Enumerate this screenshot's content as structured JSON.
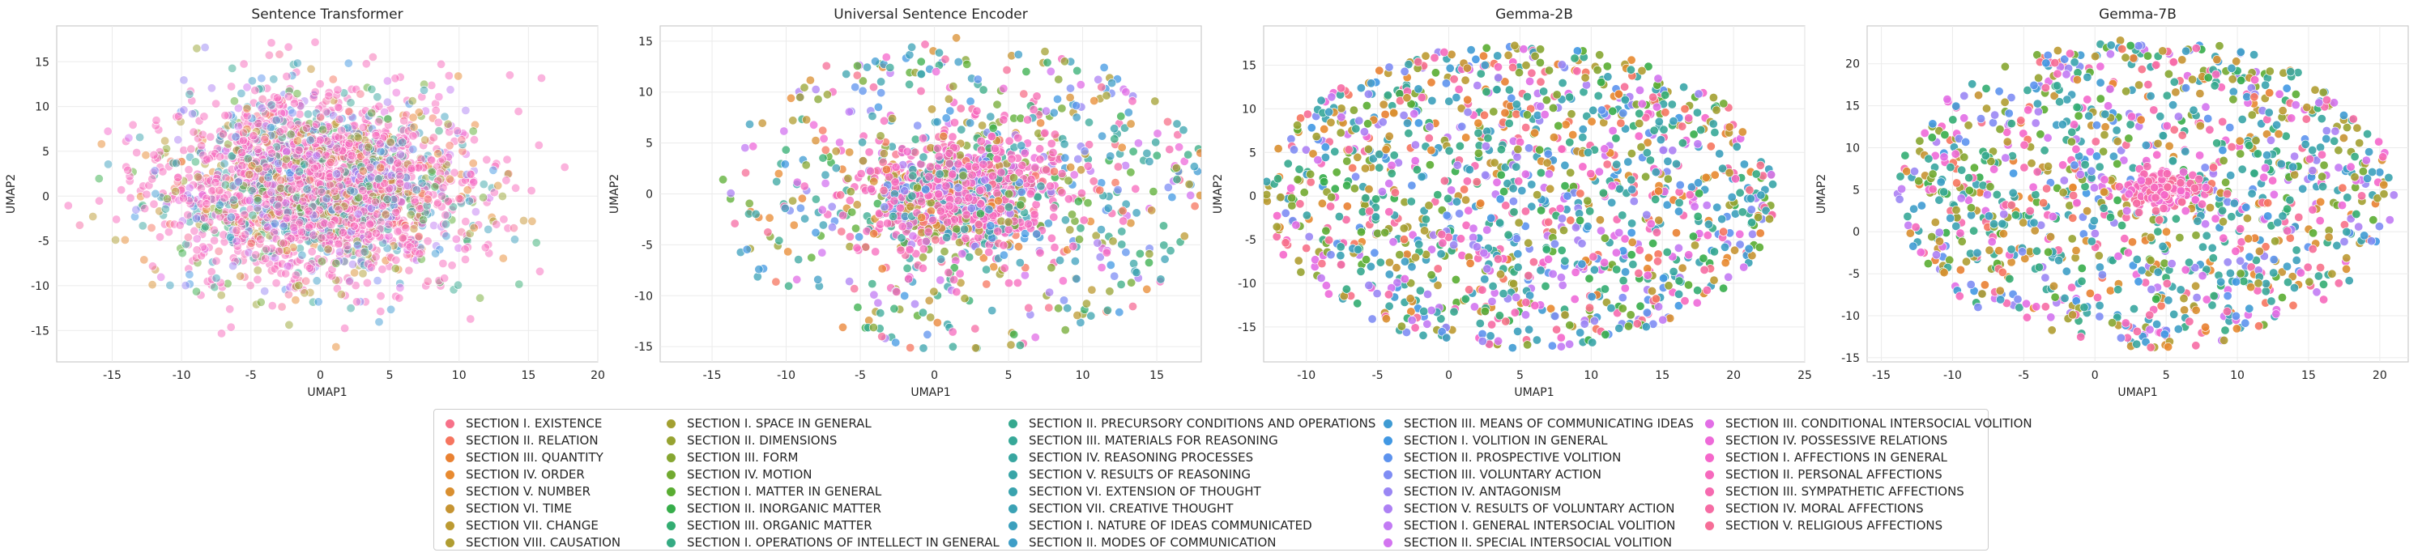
{
  "chart_data": [
    {
      "type": "scatter",
      "title": "Sentence Transformer",
      "xlabel": "UMAP1",
      "ylabel": "UMAP2",
      "xlim": [
        -19,
        20
      ],
      "ylim": [
        -18.5,
        19
      ],
      "xticks": [
        -15,
        -10,
        -5,
        0,
        5,
        10,
        15,
        20
      ],
      "yticks": [
        -15,
        -10,
        -5,
        0,
        5,
        10,
        15
      ],
      "grid": true,
      "distribution": {
        "shape": "gaussian",
        "center": [
          0,
          1
        ],
        "spread": [
          5.5,
          5.2
        ],
        "points": 2500,
        "marker_alpha": 0.5,
        "dominant_color": "#f768bc"
      }
    },
    {
      "type": "scatter",
      "title": "Universal Sentence Encoder",
      "xlabel": "UMAP1",
      "ylabel": "UMAP2",
      "xlim": [
        -18.5,
        18
      ],
      "ylim": [
        -16.5,
        16.5
      ],
      "xticks": [
        -15,
        -10,
        -5,
        0,
        5,
        10,
        15
      ],
      "yticks": [
        -15,
        -10,
        -5,
        0,
        5,
        10,
        15
      ],
      "grid": true,
      "distribution": {
        "shape": "core-and-halo",
        "center": [
          2,
          0
        ],
        "spread": [
          3.5,
          3
        ],
        "core_points": 900,
        "halo_points": 550,
        "halo_radius": [
          16.5,
          15.5
        ],
        "marker_alpha": 0.75,
        "dominant_color": "#f768bc"
      }
    },
    {
      "type": "scatter",
      "title": "Gemma-2B",
      "xlabel": "UMAP1",
      "ylabel": "UMAP2",
      "xlim": [
        -13,
        25
      ],
      "ylim": [
        -19,
        19.5
      ],
      "xticks": [
        -10,
        -5,
        0,
        5,
        10,
        15,
        20,
        25
      ],
      "yticks": [
        -15,
        -10,
        -5,
        0,
        5,
        10,
        15
      ],
      "grid": true,
      "distribution": {
        "shape": "uniform-ellipse",
        "center": [
          5,
          0
        ],
        "radius": [
          18,
          17.5
        ],
        "points": 1300,
        "marker_alpha": 0.9
      }
    },
    {
      "type": "scatter",
      "title": "Gemma-7B",
      "xlabel": "UMAP1",
      "ylabel": "UMAP2",
      "xlim": [
        -16,
        22
      ],
      "ylim": [
        -15.5,
        24.5
      ],
      "xticks": [
        -15,
        -10,
        -5,
        0,
        5,
        10,
        15,
        20
      ],
      "yticks": [
        -15,
        -10,
        -5,
        0,
        5,
        10,
        15,
        20
      ],
      "grid": true,
      "distribution": {
        "shape": "uniform-ellipse-with-core",
        "center": [
          3.5,
          4.5
        ],
        "radius": [
          17.5,
          18.5
        ],
        "points": 1200,
        "core_points": 150,
        "core_center": [
          5,
          5
        ],
        "marker_alpha": 0.9
      }
    }
  ],
  "legend": {
    "location": "bottom-center",
    "entries": [
      {
        "label": "SECTION I. EXISTENCE",
        "color": "#f77189"
      },
      {
        "label": "SECTION II. RELATION",
        "color": "#f6755f"
      },
      {
        "label": "SECTION III. QUANTITY",
        "color": "#e98132"
      },
      {
        "label": "SECTION IV. ORDER",
        "color": "#e88a30"
      },
      {
        "label": "SECTION V. NUMBER",
        "color": "#d98f30"
      },
      {
        "label": "SECTION VI. TIME",
        "color": "#c69432"
      },
      {
        "label": "SECTION VII. CHANGE",
        "color": "#bc9a32"
      },
      {
        "label": "SECTION VIII. CAUSATION",
        "color": "#b09d32"
      },
      {
        "label": "SECTION I. SPACE IN GENERAL",
        "color": "#a3a031"
      },
      {
        "label": "SECTION II. DIMENSIONS",
        "color": "#97a331"
      },
      {
        "label": "SECTION III. FORM",
        "color": "#86a631"
      },
      {
        "label": "SECTION IV. MOTION",
        "color": "#72aa31"
      },
      {
        "label": "SECTION I. MATTER IN GENERAL",
        "color": "#5aad32"
      },
      {
        "label": "SECTION II. INORGANIC MATTER",
        "color": "#36ad4a"
      },
      {
        "label": "SECTION III. ORGANIC MATTER",
        "color": "#33ad72"
      },
      {
        "label": "SECTION I. OPERATIONS OF INTELLECT IN GENERAL",
        "color": "#35ab83"
      },
      {
        "label": "SECTION II. PRECURSORY CONDITIONS AND OPERATIONS",
        "color": "#36a98f"
      },
      {
        "label": "SECTION III. MATERIALS FOR REASONING",
        "color": "#37a898"
      },
      {
        "label": "SECTION IV. REASONING PROCESSES",
        "color": "#38a6a0"
      },
      {
        "label": "SECTION V. RESULTS OF REASONING",
        "color": "#39a5a7"
      },
      {
        "label": "SECTION VI. EXTENSION OF THOUGHT",
        "color": "#3aa3ae"
      },
      {
        "label": "SECTION VII. CREATIVE THOUGHT",
        "color": "#3ba2b5"
      },
      {
        "label": "SECTION I. NATURE OF IDEAS COMMUNICATED",
        "color": "#3ca0bd"
      },
      {
        "label": "SECTION II. MODES OF COMMUNICATION",
        "color": "#3e9ec7"
      },
      {
        "label": "SECTION III. MEANS OF COMMUNICATING IDEAS",
        "color": "#3f9bd3"
      },
      {
        "label": "SECTION I. VOLITION IN GENERAL",
        "color": "#4198e3"
      },
      {
        "label": "SECTION II. PROSPECTIVE VOLITION",
        "color": "#5d93ee"
      },
      {
        "label": "SECTION III. VOLUNTARY ACTION",
        "color": "#7f8df4"
      },
      {
        "label": "SECTION IV. ANTAGONISM",
        "color": "#9a87f4"
      },
      {
        "label": "SECTION V. RESULTS OF VOLUNTARY ACTION",
        "color": "#ad81f4"
      },
      {
        "label": "SECTION I. GENERAL INTERSOCIAL VOLITION",
        "color": "#c27bf4"
      },
      {
        "label": "SECTION II. SPECIAL INTERSOCIAL VOLITION",
        "color": "#d374f0"
      },
      {
        "label": "SECTION III. CONDITIONAL INTERSOCIAL VOLITION",
        "color": "#e26ee6"
      },
      {
        "label": "SECTION IV. POSSESSIVE RELATIONS",
        "color": "#ee6ad9"
      },
      {
        "label": "SECTION I. AFFECTIONS IN GENERAL",
        "color": "#f567cb"
      },
      {
        "label": "SECTION II. PERSONAL AFFECTIONS",
        "color": "#f669bd"
      },
      {
        "label": "SECTION III. SYMPATHETIC AFFECTIONS",
        "color": "#f66ab0"
      },
      {
        "label": "SECTION IV. MORAL  AFFECTIONS",
        "color": "#f66ca4"
      },
      {
        "label": "SECTION V. RELIGIOUS AFFECTIONS",
        "color": "#f66e97"
      }
    ]
  }
}
